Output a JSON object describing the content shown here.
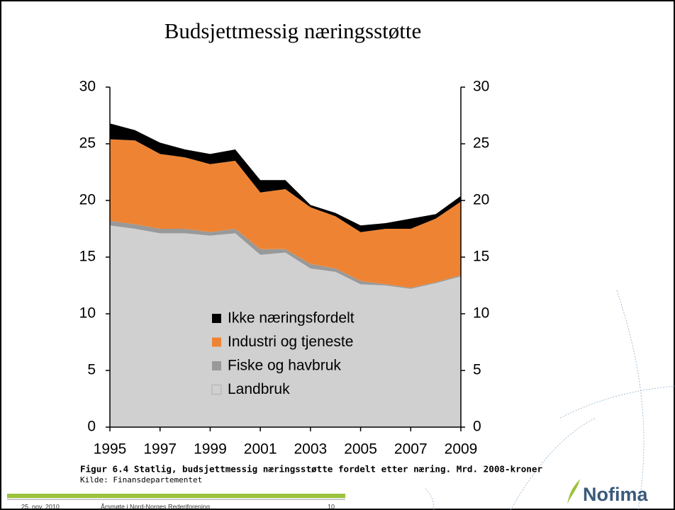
{
  "chart_data": {
    "type": "area",
    "title": "Budsjettmessig næringsstøtte",
    "x": [
      1995,
      1996,
      1997,
      1998,
      1999,
      2000,
      2001,
      2002,
      2003,
      2004,
      2005,
      2006,
      2007,
      2008,
      2009
    ],
    "xlim": [
      1995,
      2009
    ],
    "xticks": [
      1995,
      1997,
      1999,
      2001,
      2003,
      2005,
      2007,
      2009
    ],
    "ylim": [
      0,
      30
    ],
    "yticks": [
      0,
      5,
      10,
      15,
      20,
      25,
      30
    ],
    "y2lim": [
      0,
      30
    ],
    "y2ticks": [
      0,
      5,
      10,
      15,
      20,
      25,
      30
    ],
    "series": [
      {
        "name": "Landbruk",
        "color": "#d0d0d0",
        "values": [
          17.8,
          17.5,
          17.1,
          17.1,
          16.9,
          17.1,
          15.2,
          15.4,
          14.0,
          13.7,
          12.6,
          12.5,
          12.2,
          12.7,
          13.3
        ]
      },
      {
        "name": "Fiske og havbruk",
        "color": "#999999",
        "values": [
          0.4,
          0.4,
          0.4,
          0.4,
          0.3,
          0.4,
          0.5,
          0.3,
          0.4,
          0.3,
          0.3,
          0.1,
          0.1,
          0.1,
          0.1
        ]
      },
      {
        "name": "Industri og tjeneste",
        "color": "#ee8433",
        "values": [
          7.2,
          7.4,
          6.6,
          6.3,
          6.0,
          6.0,
          5.0,
          5.3,
          5.0,
          4.6,
          4.3,
          4.9,
          5.2,
          5.6,
          6.5
        ]
      },
      {
        "name": "Ikke næringsfordelt",
        "color": "#000000",
        "values": [
          1.4,
          0.9,
          1.0,
          0.7,
          0.9,
          1.0,
          1.1,
          0.8,
          0.2,
          0.3,
          0.6,
          0.5,
          0.9,
          0.4,
          0.5
        ]
      }
    ]
  },
  "slide": {
    "caption": "Figur 6.4 Statlig, budsjettmessig næringsstøtte fordelt etter næring. Mrd. 2008-kroner",
    "source": "Kilde: Finansdepartementet",
    "footer_date": "25. nov. 2010",
    "footer_event": "Årsmøte i Nord-Norges Rederiforening",
    "page_number": "10",
    "logo": "Nofima"
  }
}
